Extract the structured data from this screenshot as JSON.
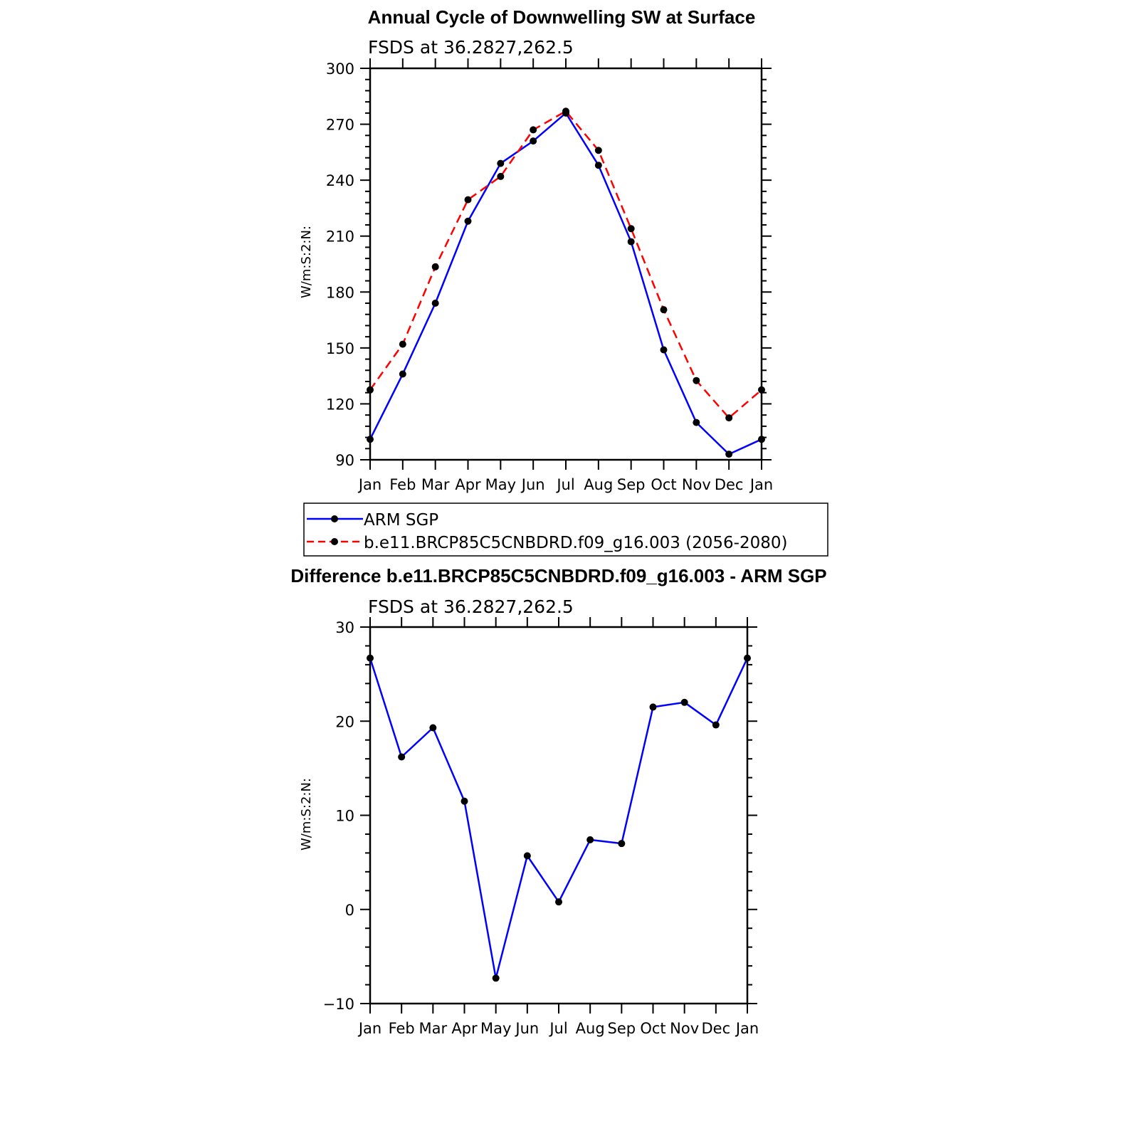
{
  "colors": {
    "obs": "#0000ff",
    "model": "#ff0000",
    "marker": "#000000",
    "axis": "#000000"
  },
  "chart_data": [
    {
      "type": "line",
      "title": "Annual Cycle of Downwelling SW at Surface",
      "subtitle": "FSDS at 36.2827,262.5",
      "ylabel": "W/m:S:2:N:",
      "xlabel": "",
      "categories": [
        "Jan",
        "Feb",
        "Mar",
        "Apr",
        "May",
        "Jun",
        "Jul",
        "Aug",
        "Sep",
        "Oct",
        "Nov",
        "Dec",
        "Jan"
      ],
      "ylim": [
        90,
        300
      ],
      "yticks": [
        90,
        120,
        150,
        180,
        210,
        240,
        270,
        300
      ],
      "series": [
        {
          "name": "ARM SGP",
          "style": "solid",
          "color": "#0000ff",
          "values": [
            101,
            136,
            174,
            218,
            249,
            261,
            276,
            248,
            207,
            149,
            110,
            93,
            101
          ]
        },
        {
          "name": "b.e11.BRCP85C5CNBDRD.f09_g16.003 (2056-2080)",
          "style": "dashed",
          "color": "#ff0000",
          "values": [
            127.5,
            152,
            193.5,
            229.5,
            242,
            267,
            277,
            256,
            214,
            170.5,
            132.5,
            112.5,
            127.5
          ]
        }
      ],
      "legend": "below"
    },
    {
      "type": "line",
      "title": "Difference b.e11.BRCP85C5CNBDRD.f09_g16.003 - ARM SGP",
      "subtitle": "FSDS at 36.2827,262.5",
      "ylabel": "W/m:S:2:N:",
      "xlabel": "",
      "categories": [
        "Jan",
        "Feb",
        "Mar",
        "Apr",
        "May",
        "Jun",
        "Jul",
        "Aug",
        "Sep",
        "Oct",
        "Nov",
        "Dec",
        "Jan"
      ],
      "ylim": [
        -10,
        30
      ],
      "yticks": [
        -10,
        0,
        10,
        20,
        30
      ],
      "ytick_labels": [
        "−10",
        "0",
        "10",
        "20",
        "30"
      ],
      "series": [
        {
          "style": "solid",
          "color": "#0000ff",
          "values": [
            26.7,
            16.2,
            19.3,
            11.5,
            -7.3,
            5.7,
            0.8,
            7.4,
            7.0,
            21.5,
            22.0,
            19.6,
            26.7
          ]
        }
      ]
    }
  ]
}
